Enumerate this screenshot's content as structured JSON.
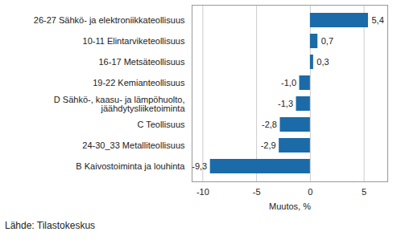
{
  "chart_data": {
    "type": "bar",
    "orientation": "horizontal",
    "categories": [
      "26-27 Sähkö- ja elektroniikkateollisuus",
      "10-11 Elintarviketeollisuus",
      "16-17 Metsäteollisuus",
      "19-22 Kemianteollisuus",
      "D Sähkö-, kaasu- ja lämpöhuolto,\njäähdytysliiketoiminta",
      "C Teollisuus",
      "24-30_33 Metalliteollisuus",
      "B Kaivostoiminta ja louhinta"
    ],
    "values": [
      5.4,
      0.7,
      0.3,
      -1.0,
      -1.3,
      -2.8,
      -2.9,
      -9.3
    ],
    "value_labels": [
      "5,4",
      "0,7",
      "0,3",
      "-1,0",
      "-1,3",
      "-2,8",
      "-2,9",
      "-9,3"
    ],
    "data_labels": true,
    "color": "#1b6ba8",
    "xlabel": "Muutos, %",
    "xlim": [
      -11,
      7.2
    ],
    "xticks": [
      -10,
      -5,
      0,
      5
    ],
    "grid": true,
    "caption": "Lähde: Tilastokeskus"
  }
}
